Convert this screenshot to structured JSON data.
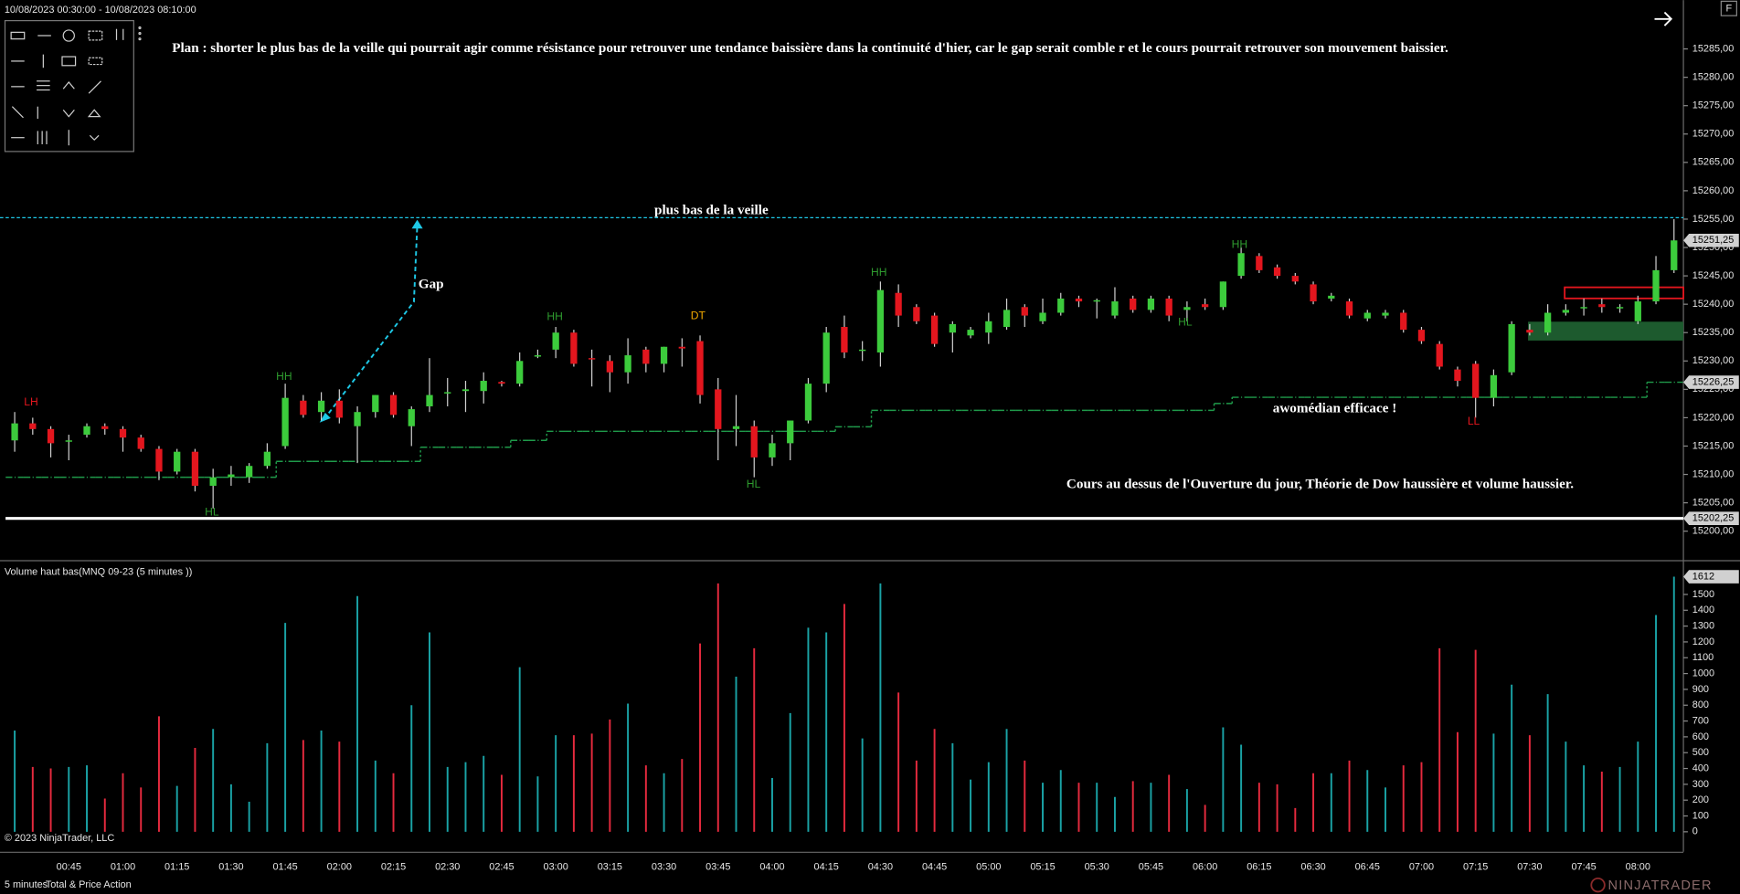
{
  "header": "10/08/2023 00:30:00 - 10/08/2023 08:10:00",
  "button": "F",
  "chart_data": {
    "type": "candlestick",
    "categories": [
      null,
      null,
      null,
      "00:45",
      null,
      null,
      "01:00",
      null,
      null,
      "01:15",
      null,
      null,
      "01:30",
      null,
      null,
      "01:45",
      null,
      null,
      "02:00",
      null,
      null,
      "02:15",
      null,
      null,
      "02:30",
      null,
      null,
      "02:45",
      null,
      null,
      "03:00",
      null,
      null,
      "03:15",
      null,
      null,
      "03:30",
      null,
      null,
      "03:45",
      null,
      null,
      "04:00",
      null,
      null,
      "04:15",
      null,
      null,
      "04:30",
      null,
      null,
      "04:45",
      null,
      null,
      "05:00",
      null,
      null,
      "05:15",
      null,
      null,
      "05:30",
      null,
      null,
      "05:45",
      null,
      null,
      "06:00",
      null,
      null,
      "06:15",
      null,
      null,
      "06:30",
      null,
      null,
      "06:45",
      null,
      null,
      "07:00",
      null,
      null,
      "07:15",
      null,
      null,
      "07:30",
      null,
      null,
      "07:45",
      null,
      null,
      "08:00",
      null,
      null
    ],
    "open": [
      15216,
      15219,
      15218,
      15215.8,
      15217,
      15218.5,
      15218,
      15216.5,
      15214.5,
      15210.5,
      15214,
      15208,
      15209.5,
      15209.5,
      15211.5,
      15215,
      15223,
      15221,
      15223,
      15218.5,
      15221,
      15224,
      15218.5,
      15222,
      15224.5,
      15224.7,
      15224.7,
      15226.3,
      15226,
      15231,
      15232,
      15235,
      15230.5,
      15230,
      15228,
      15232,
      15229.5,
      15232.5,
      15233.5,
      15225,
      15218,
      15218.5,
      15213,
      15215.5,
      15219.5,
      15226,
      15236,
      15232,
      15231.5,
      15242,
      15239.5,
      15238,
      15235,
      15234.5,
      15235,
      15236,
      15239.5,
      15237,
      15238.5,
      15241,
      15240.7,
      15238,
      15241,
      15239,
      15241,
      15239,
      15240,
      15239.5,
      15245,
      15248.5,
      15246.5,
      15245,
      15243.5,
      15241,
      15240.5,
      15237.5,
      15238,
      15238.5,
      15235.5,
      15233,
      15228.5,
      15229.5,
      15223.5,
      15228,
      15235.5,
      15235,
      15238.5,
      15239.5,
      15240,
      15239.5,
      15237,
      15240.5,
      15246
    ],
    "high": [
      15221,
      15220,
      15218.5,
      15217,
      15219,
      15219,
      15218.5,
      15217,
      15215,
      15214.5,
      15214.5,
      15211,
      15211.5,
      15212,
      15215.5,
      15226,
      15224,
      15224.5,
      15225,
      15222,
      15224,
      15224.5,
      15222,
      15230.5,
      15227,
      15226.5,
      15228,
      15226.5,
      15231.5,
      15232,
      15236,
      15235.5,
      15232,
      15231,
      15234,
      15232.5,
      15232.5,
      15234,
      15234.5,
      15227,
      15224,
      15219.5,
      15217,
      15219.5,
      15227,
      15236,
      15238,
      15233.5,
      15244,
      15243.5,
      15240,
      15238.5,
      15237,
      15236,
      15238.5,
      15241,
      15240,
      15241,
      15242,
      15241.5,
      15241,
      15243,
      15241.5,
      15241.5,
      15241.5,
      15240.5,
      15241,
      15244,
      15250,
      15249,
      15247,
      15245.5,
      15244,
      15242,
      15241,
      15239,
      15239,
      15239,
      15236,
      15233.5,
      15229,
      15230,
      15228.5,
      15237,
      15236.5,
      15240,
      15240,
      15241,
      15241,
      15240,
      15241.5,
      15248.5,
      15255
    ],
    "low": [
      15214,
      15217,
      15213,
      15212.5,
      15216.5,
      15217,
      15214,
      15214,
      15209,
      15210,
      15207,
      15204,
      15208,
      15208.5,
      15211,
      15214.5,
      15220,
      15219.5,
      15219,
      15212,
      15220,
      15220,
      15215,
      15221,
      15222,
      15221,
      15222.5,
      15225.5,
      15225.5,
      15230.5,
      15230.5,
      15229,
      15225.5,
      15224.5,
      15226,
      15228,
      15228,
      15229,
      15222.5,
      15212.5,
      15215,
      15209.5,
      15211.5,
      15212.5,
      15219,
      15224.5,
      15230.5,
      15230,
      15229,
      15236,
      15236.5,
      15232.5,
      15231.5,
      15234,
      15233,
      15235.5,
      15236,
      15236.5,
      15238,
      15239.5,
      15237.5,
      15237.5,
      15238.5,
      15238.5,
      15237,
      15237,
      15239,
      15239,
      15244.5,
      15245.5,
      15244.5,
      15243.5,
      15240,
      15240.5,
      15237.5,
      15237,
      15237.5,
      15235,
      15233,
      15228.5,
      15225.5,
      15220,
      15222,
      15227.5,
      15234.5,
      15234.5,
      15238,
      15238,
      15238.5,
      15238.5,
      15236.5,
      15240,
      15245.5
    ],
    "close": [
      15219,
      15218,
      15215.5,
      15216,
      15218.5,
      15218,
      15216.5,
      15214.5,
      15210.5,
      15214,
      15208,
      15209.5,
      15210,
      15211.5,
      15214,
      15223.5,
      15220.5,
      15223,
      15220,
      15221,
      15224,
      15220.5,
      15221.5,
      15224,
      15224.5,
      15225,
      15226.5,
      15226,
      15230,
      15231,
      15235,
      15229.5,
      15230.3,
      15228,
      15231,
      15229.5,
      15232.5,
      15232.2,
      15224,
      15218,
      15218.5,
      15213,
      15215.5,
      15219.5,
      15226,
      15235,
      15231.5,
      15232,
      15242.5,
      15238,
      15237,
      15233,
      15236.5,
      15235.5,
      15237,
      15239,
      15238,
      15238.5,
      15241,
      15240.5,
      15240.7,
      15240.5,
      15239,
      15241,
      15238,
      15239.5,
      15239.5,
      15244,
      15249,
      15246,
      15245,
      15244,
      15240.5,
      15241.5,
      15238,
      15238.5,
      15238.5,
      15235.5,
      15233.5,
      15229,
      15226.5,
      15223.5,
      15227.5,
      15236.5,
      15235,
      15238.5,
      15239,
      15239.5,
      15239.5,
      15239.5,
      15240.5,
      15246,
      15251.25
    ],
    "up_color": "#3ccb3c",
    "down_color": "#e3161e",
    "ylim": [
      15194.9,
      15293.6
    ],
    "yticks": [
      {
        "value": 15200,
        "label": "15200,00"
      },
      {
        "value": 15205,
        "label": "15205,00"
      },
      {
        "value": 15210,
        "label": "15210,00"
      },
      {
        "value": 15215,
        "label": "15215,00"
      },
      {
        "value": 15220,
        "label": "15220,00"
      },
      {
        "value": 15225,
        "label": "15225,00"
      },
      {
        "value": 15230,
        "label": "15230,00"
      },
      {
        "value": 15235,
        "label": "15235,00"
      },
      {
        "value": 15240,
        "label": "15240,00"
      },
      {
        "value": 15245,
        "label": "15245,00"
      },
      {
        "value": 15250,
        "label": "15250,00"
      },
      {
        "value": 15255,
        "label": "15255,00"
      },
      {
        "value": 15260,
        "label": "15260,00"
      },
      {
        "value": 15265,
        "label": "15265,00"
      },
      {
        "value": 15270,
        "label": "15270,00"
      },
      {
        "value": 15275,
        "label": "15275,00"
      },
      {
        "value": 15280,
        "label": "15280,00"
      },
      {
        "value": 15285,
        "label": "15285,00"
      }
    ],
    "median": {
      "color": "#1f9a4a",
      "values": [
        15209.5,
        15209.5,
        15209.5,
        15209.5,
        15209.5,
        15209.5,
        15209.5,
        15209.5,
        15209.5,
        15209.5,
        15209.5,
        15209.5,
        15209.5,
        15209.5,
        15209.5,
        15212.3,
        15212.3,
        15212.3,
        15212.3,
        15212.3,
        15212.3,
        15212.3,
        15212.3,
        15214.8,
        15214.8,
        15214.8,
        15214.8,
        15214.8,
        15216,
        15216,
        15217.6,
        15217.6,
        15217.6,
        15217.6,
        15217.6,
        15217.6,
        15217.6,
        15217.6,
        15217.6,
        15217.6,
        15217.6,
        15217.6,
        15217.6,
        15217.6,
        15217.6,
        15217.6,
        15218.4,
        15218.4,
        15221.3,
        15221.3,
        15221.3,
        15221.3,
        15221.3,
        15221.3,
        15221.3,
        15221.3,
        15221.3,
        15221.3,
        15221.3,
        15221.3,
        15221.3,
        15221.3,
        15221.3,
        15221.3,
        15221.3,
        15221.3,
        15221.3,
        15222.5,
        15223.6,
        15223.6,
        15223.6,
        15223.6,
        15223.6,
        15223.6,
        15223.6,
        15223.6,
        15223.6,
        15223.6,
        15223.6,
        15223.6,
        15223.6,
        15223.6,
        15223.6,
        15223.6,
        15223.6,
        15223.6,
        15223.6,
        15223.6,
        15223.6,
        15223.6,
        15223.6,
        15226.25,
        15226.25
      ]
    },
    "prior_low": {
      "value": 15255.25,
      "color": "#1ec8e6"
    },
    "day_open": {
      "value": 15202.25,
      "color": "#ffffff"
    },
    "price_markers": [
      {
        "value": 15251.25,
        "label": "15251,25"
      },
      {
        "value": 15226.25,
        "label": "15226,25"
      },
      {
        "value": 15202.25,
        "label": "15202,25"
      }
    ],
    "annotations": {
      "plan": "Plan : shorter le plus bas de la veille qui pourrait agir comme résistance pour retrouver une tendance baissière dans la continuité d'hier, car le gap serait comble r et le cours pourrait retrouver son mouvement baissier.",
      "prior_low": "plus bas de la veille",
      "gap": "Gap",
      "median": "awomédian efficace !",
      "comment": "Cours au dessus de l'Ouverture du jour, Théorie de Dow haussière et volume  haussier.",
      "swings": [
        {
          "text": "LH",
          "color": "#e3161e"
        },
        {
          "text": "HH",
          "color": "#2e9a2e"
        },
        {
          "text": "HL",
          "color": "#2e9a2e"
        },
        {
          "text": "HH",
          "color": "#2e9a2e"
        },
        {
          "text": "DT",
          "color": "#f0a800"
        },
        {
          "text": "HL",
          "color": "#2e9a2e"
        },
        {
          "text": "HH",
          "color": "#2e9a2e"
        },
        {
          "text": "HL",
          "color": "#2e9a2e"
        },
        {
          "text": "HH",
          "color": "#2e9a2e"
        },
        {
          "text": "LL",
          "color": "#e3161e"
        }
      ]
    },
    "volume": {
      "title": "Volume haut bas(MNQ 09-23 (5 minutes ))",
      "values": [
        640,
        410,
        400,
        410,
        420,
        210,
        370,
        280,
        730,
        290,
        530,
        650,
        300,
        190,
        560,
        1320,
        580,
        640,
        570,
        1490,
        450,
        370,
        800,
        1260,
        410,
        440,
        480,
        360,
        1040,
        350,
        610,
        610,
        620,
        710,
        810,
        420,
        370,
        460,
        1190,
        1570,
        980,
        1160,
        340,
        750,
        1290,
        1260,
        1440,
        590,
        1570,
        880,
        450,
        650,
        560,
        330,
        440,
        650,
        450,
        310,
        390,
        310,
        310,
        220,
        320,
        310,
        360,
        270,
        170,
        660,
        550,
        310,
        300,
        150,
        370,
        370,
        450,
        390,
        280,
        420,
        440,
        1160,
        630,
        1150,
        620,
        930,
        610,
        870,
        570,
        420,
        380,
        410,
        570,
        1370,
        1612
      ],
      "up_color": "#1aa3a6",
      "down_color": "#e62a3e",
      "ylim": [
        0,
        1703
      ],
      "yticks": [
        0,
        100,
        200,
        300,
        400,
        500,
        600,
        700,
        800,
        900,
        1000,
        1100,
        1200,
        1300,
        1400,
        1500
      ]
    }
  },
  "footer": {
    "copyright": "© 2023 NinjaTrader, LLC",
    "period": "5 minutes",
    "template": "Total & Price Action",
    "brand": "NINJATRADER"
  }
}
